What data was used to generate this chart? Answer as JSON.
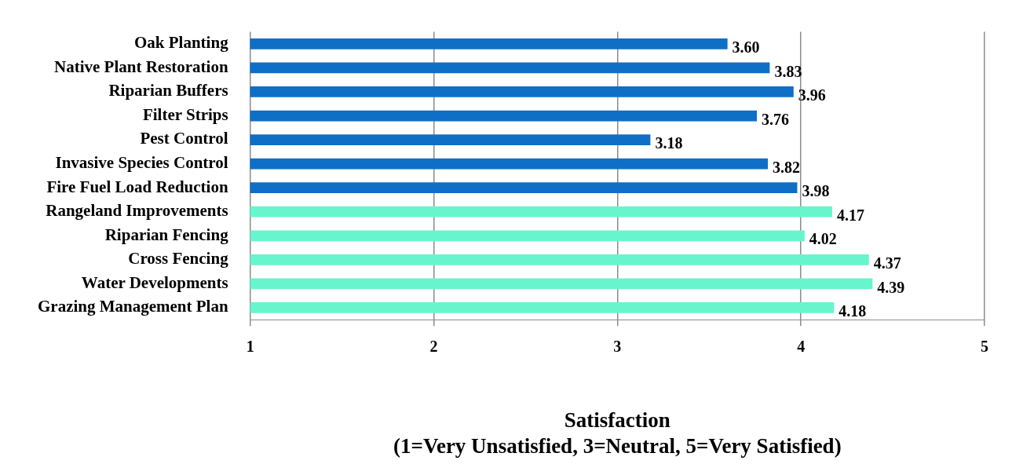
{
  "chart_data": {
    "type": "bar",
    "orientation": "horizontal",
    "xlabel": "Satisfaction\n(1=Very Unsatisfied, 3=Neutral, 5=Very Satisfied)",
    "categories": [
      "Oak Planting",
      "Native Plant Restoration",
      "Riparian Buffers",
      "Filter Strips",
      "Pest Control",
      "Invasive Species Control",
      "Fire Fuel Load Reduction",
      "Rangeland Improvements",
      "Riparian Fencing",
      "Cross Fencing",
      "Water Developments",
      "Grazing Management Plan"
    ],
    "values": [
      3.6,
      3.83,
      3.96,
      3.76,
      3.18,
      3.82,
      3.98,
      4.17,
      4.02,
      4.37,
      4.39,
      4.18
    ],
    "value_labels": [
      "3.60",
      "3.83",
      "3.96",
      "3.76",
      "3.18",
      "3.82",
      "3.98",
      "4.17",
      "4.02",
      "4.37",
      "4.39",
      "4.18"
    ],
    "colors": [
      "#0f6fc6",
      "#0f6fc6",
      "#0f6fc6",
      "#0f6fc6",
      "#0f6fc6",
      "#0f6fc6",
      "#0f6fc6",
      "#66f5cc",
      "#66f5cc",
      "#66f5cc",
      "#66f5cc",
      "#66f5cc"
    ],
    "xlim": [
      1,
      5
    ],
    "xticks": [
      1,
      2,
      3,
      4,
      5
    ],
    "grid": "x",
    "legend": false
  }
}
